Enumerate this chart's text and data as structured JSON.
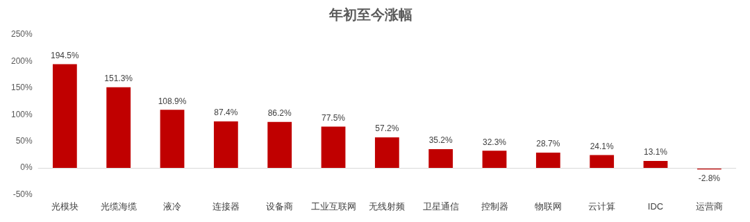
{
  "chart_data": {
    "type": "bar",
    "title": "年初至今涨幅",
    "categories": [
      "光模块",
      "光缆海缆",
      "液冷",
      "连接器",
      "设备商",
      "工业互联网",
      "无线射频",
      "卫星通信",
      "控制器",
      "物联网",
      "云计算",
      "IDC",
      "运营商"
    ],
    "values": [
      194.5,
      151.3,
      108.9,
      87.4,
      86.2,
      77.5,
      57.2,
      35.2,
      32.3,
      28.7,
      24.1,
      13.1,
      -2.8
    ],
    "value_labels": [
      "194.5%",
      "151.3%",
      "108.9%",
      "87.4%",
      "86.2%",
      "77.5%",
      "57.2%",
      "35.2%",
      "32.3%",
      "28.7%",
      "24.1%",
      "13.1%",
      "-2.8%"
    ],
    "color": "#c00000",
    "ylim": [
      -50,
      250
    ],
    "yticks": [
      {
        "value": -50,
        "label": "-50%"
      },
      {
        "value": 0,
        "label": "0%"
      },
      {
        "value": 50,
        "label": "50%"
      },
      {
        "value": 100,
        "label": "100%"
      },
      {
        "value": 150,
        "label": "150%"
      },
      {
        "value": 200,
        "label": "200%"
      },
      {
        "value": 250,
        "label": "250%"
      }
    ],
    "ref_lines": [
      {
        "axis": "y",
        "value": 0,
        "color": "#d9d9d9"
      }
    ],
    "grid": false,
    "legend": false
  }
}
